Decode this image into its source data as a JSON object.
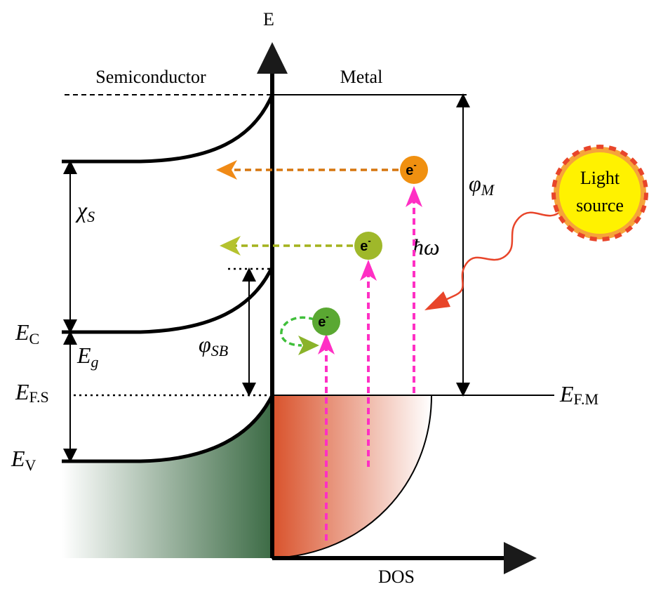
{
  "axes": {
    "y_label": "E",
    "x_label": "DOS"
  },
  "regions": {
    "left": "Semiconductor",
    "right": "Metal"
  },
  "levels": [
    {
      "symbol": "E",
      "sub": "C"
    },
    {
      "symbol": "E",
      "sub": "F.S"
    },
    {
      "symbol": "E",
      "sub": "V"
    },
    {
      "symbol": "E",
      "sub": "F.M"
    }
  ],
  "quantities": [
    {
      "symbol": "χ",
      "sub": "S"
    },
    {
      "symbol": "φ",
      "sub": "M"
    },
    {
      "symbol": "E",
      "sub": "g"
    },
    {
      "symbol": "φ",
      "sub": "SB"
    },
    {
      "symbol": "ħω"
    }
  ],
  "light_source": {
    "line1": "Light",
    "line2": "source"
  },
  "electrons": [
    {
      "symbol": "e",
      "charge": "-"
    },
    {
      "symbol": "e",
      "charge": "-"
    },
    {
      "symbol": "e",
      "charge": "-"
    }
  ]
}
